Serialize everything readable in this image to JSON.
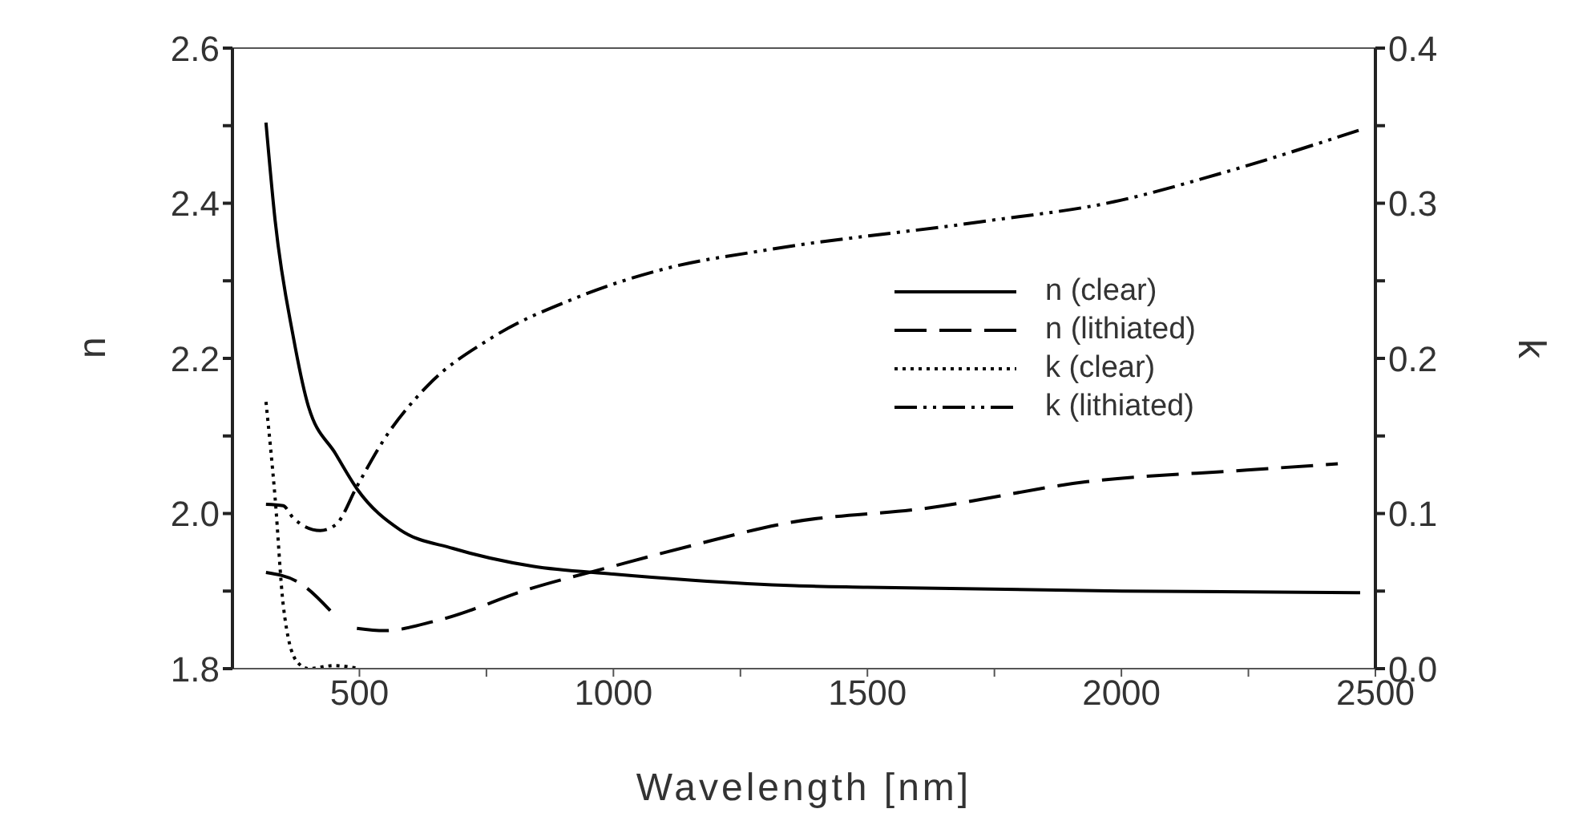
{
  "chart_data": {
    "type": "line",
    "xlabel": "Wavelength [nm]",
    "ylabel": "n",
    "y2label": "k",
    "xlim": [
      250,
      2500
    ],
    "xticks": [
      500,
      {
        "value": 750,
        "label": null
      },
      1000,
      {
        "value": 1250,
        "label": null
      },
      1500,
      {
        "value": 1750,
        "label": null
      },
      2000,
      {
        "value": 2250,
        "label": null
      },
      2500
    ],
    "ylim": [
      1.8,
      2.6
    ],
    "yticks": [
      1.8,
      {
        "value": 1.9,
        "label": null
      },
      {
        "value": 2.0,
        "label": "2.0"
      },
      {
        "value": 2.1,
        "label": null
      },
      2.2,
      {
        "value": 2.3,
        "label": null
      },
      2.4,
      {
        "value": 2.5,
        "label": null
      },
      2.6
    ],
    "y2lim": [
      0,
      0.4
    ],
    "y2ticks": [
      {
        "value": 0,
        "label": "0.0"
      },
      {
        "value": 0.05,
        "label": null
      },
      0.1,
      {
        "value": 0.15,
        "label": null
      },
      0.2,
      {
        "value": 0.25,
        "label": null
      },
      0.3,
      {
        "value": 0.35,
        "label": null
      },
      0.4
    ],
    "legend": "right",
    "marker": "none",
    "series": [
      {
        "name": "n (clear)",
        "color": "#000000",
        "line_style": "solid",
        "x": [
          316,
          334,
          370,
          397,
          454,
          496,
          580,
          684,
          841,
          999,
          1156,
          1357,
          1500,
          2000,
          2470
        ],
        "values": [
          2.504,
          2.378,
          2.227,
          2.144,
          2.076,
          2.031,
          1.979,
          1.955,
          1.932,
          1.922,
          1.914,
          1.907,
          1.905,
          1.9,
          1.898
        ]
      },
      {
        "name": "n (lithiated)",
        "color": "#000000",
        "line_style": "dashed",
        "x": [
          316,
          381,
          448,
          470,
          495,
          549,
          653,
          841,
          999,
          1156,
          1344,
          1618,
          1932,
          2247,
          2426
        ],
        "values": [
          1.924,
          1.911,
          1.871,
          null,
          1.852,
          1.849,
          1.862,
          1.904,
          1.932,
          1.959,
          1.988,
          2.007,
          2.041,
          2.056,
          2.064
        ]
      },
      {
        "name": "k (clear)",
        "color": "#000000",
        "line_style": "dotted",
        "axis": "y2",
        "x": [
          316,
          334,
          350,
          376,
          400,
          450,
          500
        ],
        "values": [
          0.172,
          0.11,
          0.041,
          0.005,
          0.0,
          0.002,
          0.0
        ]
      },
      {
        "name": "k (lithiated)",
        "color": "#000000",
        "line_style": "dashdotdot",
        "axis": "y2",
        "x": [
          316,
          350,
          370,
          423,
          454,
          496,
          549,
          633,
          759,
          926,
          1104,
          1304,
          1722,
          1986,
          2193,
          2467
        ],
        "values": [
          0.106,
          0.105,
          0.097,
          0.089,
          0.093,
          0.118,
          0.148,
          0.182,
          0.213,
          0.239,
          0.258,
          0.27,
          0.288,
          0.301,
          0.319,
          0.347
        ]
      }
    ]
  }
}
